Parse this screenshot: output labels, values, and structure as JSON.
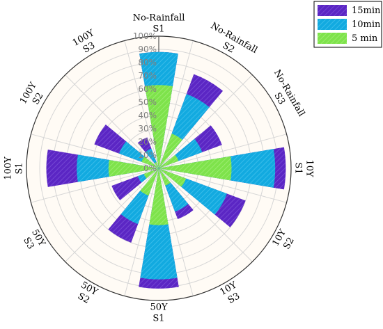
{
  "chart_data": {
    "type": "polar-bar",
    "categories": [
      [
        "No-Rainfall",
        "S1"
      ],
      [
        "No-Rainfall",
        "S2"
      ],
      [
        "No-Rainfall",
        "S3"
      ],
      [
        "10Y",
        "S1"
      ],
      [
        "10Y",
        "S2"
      ],
      [
        "10Y",
        "S3"
      ],
      [
        "50Y",
        "S1"
      ],
      [
        "50Y",
        "S2"
      ],
      [
        "50Y",
        "S3"
      ],
      [
        "100Y",
        "S1"
      ],
      [
        "100Y",
        "S2"
      ],
      [
        "100Y",
        "S3"
      ]
    ],
    "series": [
      {
        "name": "5 min",
        "color": "#7ee34b",
        "values": [
          63,
          28,
          16,
          55,
          22,
          14,
          43,
          22,
          12,
          38,
          14,
          5
        ]
      },
      {
        "name": "10min",
        "color": "#12aae0",
        "values": [
          88,
          60,
          35,
          88,
          55,
          35,
          84,
          45,
          17,
          62,
          32,
          16
        ]
      },
      {
        "name": "15min",
        "color": "#5b26c4",
        "values": [
          88,
          76,
          51,
          96,
          70,
          41,
          91,
          60,
          38,
          85,
          52,
          25
        ]
      }
    ],
    "radial_ticks": [
      "0%",
      "10%",
      "20%",
      "30%",
      "40%",
      "50%",
      "60%",
      "70%",
      "80%",
      "90%",
      "100%"
    ],
    "rlim": [
      0,
      100
    ],
    "grid": true,
    "legend_position": "top-right"
  }
}
